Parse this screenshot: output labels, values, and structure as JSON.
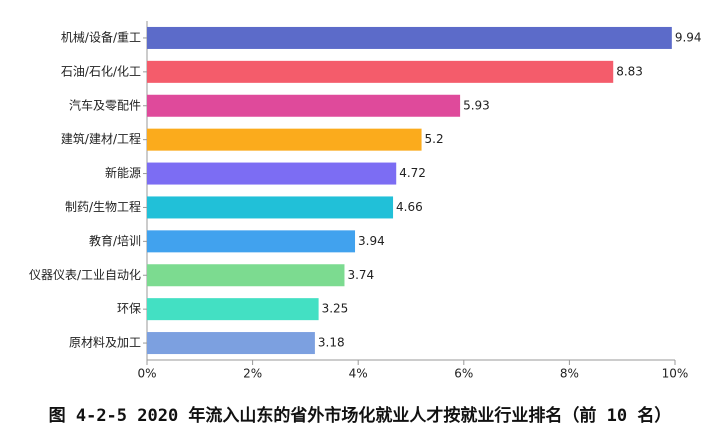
{
  "chart_data": {
    "type": "bar",
    "orientation": "horizontal",
    "caption": "图 4-2-5 2020 年流入山东的省外市场化就业人才按就业行业排名（前 10 名）",
    "categories": [
      "机械/设备/重工",
      "石油/石化/化工",
      "汽车及零配件",
      "建筑/建材/工程",
      "新能源",
      "制药/生物工程",
      "教育/培训",
      "仪器仪表/工业自动化",
      "环保",
      "原材料及加工"
    ],
    "values": [
      9.94,
      8.83,
      5.93,
      5.2,
      4.72,
      4.66,
      3.94,
      3.74,
      3.25,
      3.18
    ],
    "colors": [
      "#5c6bc9",
      "#f45c6b",
      "#df4a9b",
      "#fbab1c",
      "#7c6df3",
      "#21c0d8",
      "#41a2ee",
      "#7cdb90",
      "#43e0c3",
      "#7ca0e0"
    ],
    "xlim": [
      0,
      10
    ],
    "xticks": [
      {
        "value": 0,
        "label": "0%"
      },
      {
        "value": 2,
        "label": "2%"
      },
      {
        "value": 4,
        "label": "4%"
      },
      {
        "value": 6,
        "label": "6%"
      },
      {
        "value": 8,
        "label": "8%"
      },
      {
        "value": 10,
        "label": "10%"
      }
    ]
  }
}
